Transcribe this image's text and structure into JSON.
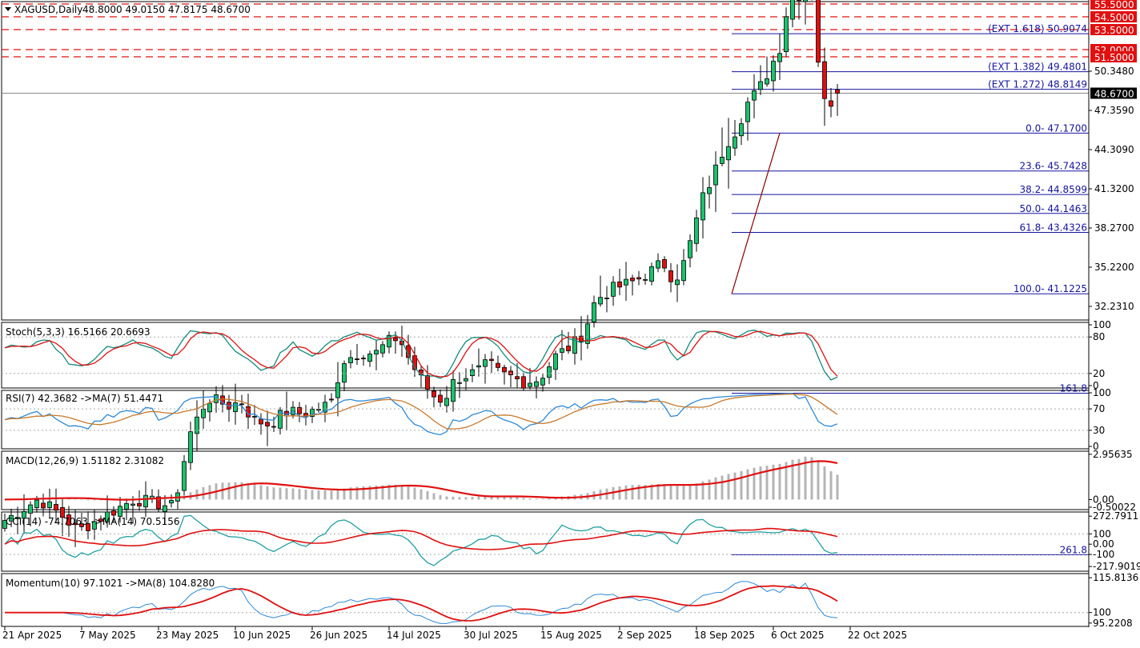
{
  "header": {
    "symbol": "XAGUSD,Daily",
    "ohlc": "48.8000 49.0150 47.8175 48.6700"
  },
  "colors": {
    "bull": "#1bc26b",
    "bear": "#e01010",
    "fib": "#1515a0",
    "level": "#e01010",
    "stoch_main": "#138a7a",
    "stoch_signal": "#e01010",
    "rsi": "#2e8ad6",
    "rsi_ma": "#c8782a",
    "macd_hist": "#b4b4b4",
    "macd_signal": "#e01010",
    "cci": "#20a0a0",
    "cci_ma": "#e01010",
    "mom": "#2e8ad6",
    "mom_ma": "#e01010"
  },
  "chart_data": [
    {
      "type": "candlestick",
      "title": "XAGUSD,Daily",
      "ylim": [
        30.6,
        56.0
      ],
      "current_price": 48.67,
      "y_ticks": [
        "50.3480",
        "47.3590",
        "44.3090",
        "41.3200",
        "38.2700",
        "35.2200",
        "32.2310"
      ],
      "x_ticks": [
        "21 Apr 2025",
        "7 May 2025",
        "23 May 2025",
        "10 Jun 2025",
        "26 Jun 2025",
        "14 Jul 2025",
        "30 Jul 2025",
        "15 Aug 2025",
        "2 Sep 2025",
        "18 Sep 2025",
        "6 Oct 2025",
        "22 Oct 2025"
      ],
      "levels": [
        "55.5000",
        "54.5000",
        "53.5000",
        "52.0000",
        "51.5000"
      ],
      "fib_labels": [
        {
          "label": "(EXT 1.618)  50.9074",
          "price": 50.9074
        },
        {
          "label": "(EXT 1.382)  49.4801",
          "price": 49.4801
        },
        {
          "label": "(EXT 1.272)  48.8149",
          "price": 48.8149
        },
        {
          "label": "0.0- 47.1700",
          "price": 47.17
        },
        {
          "label": "23.6- 45.7428",
          "price": 45.7428
        },
        {
          "label": "38.2- 44.8599",
          "price": 44.8599
        },
        {
          "label": "50.0- 44.1463",
          "price": 44.1463
        },
        {
          "label": "61.8- 43.4326",
          "price": 43.4326
        },
        {
          "label": "100.0- 41.1225",
          "price": 41.1225
        },
        {
          "label": "161.8",
          "price": 37.38
        },
        {
          "label": "261.8",
          "price": 31.3
        }
      ]
    },
    {
      "type": "line",
      "title": "Stoch(5,3,3) 16.5166 20.6693",
      "ylim": [
        0,
        100
      ],
      "y_ticks": [
        "100",
        "80",
        "20",
        "0"
      ],
      "levels": [
        80,
        20
      ]
    },
    {
      "type": "line",
      "title": "RSI(7) 42.3682  ->MA(7) 51.4471",
      "ylim": [
        0,
        100
      ],
      "y_ticks": [
        "100",
        "70",
        "30",
        "0"
      ],
      "levels": [
        70,
        30
      ]
    },
    {
      "type": "bar",
      "title": "MACD(12,26,9) 1.51182 2.31082",
      "ylim": [
        -0.5,
        3.0
      ],
      "y_ticks": [
        "2.95635",
        "0.00",
        "-0.50022"
      ]
    },
    {
      "type": "line",
      "title": "CCI(14) -74.7063  ->MA(14) 70.5156",
      "ylim": [
        -240,
        290
      ],
      "y_ticks": [
        "272.7911",
        "100",
        "0.00",
        "-100",
        "-217.9019"
      ],
      "levels": [
        100,
        -100
      ]
    },
    {
      "type": "line",
      "title": "Momentum(10) 97.1021  ->MA(8) 104.8280",
      "ylim": [
        94.8,
        116.6
      ],
      "y_ticks": [
        "115.8136",
        "100",
        "95.2208"
      ],
      "levels": [
        100
      ]
    }
  ]
}
